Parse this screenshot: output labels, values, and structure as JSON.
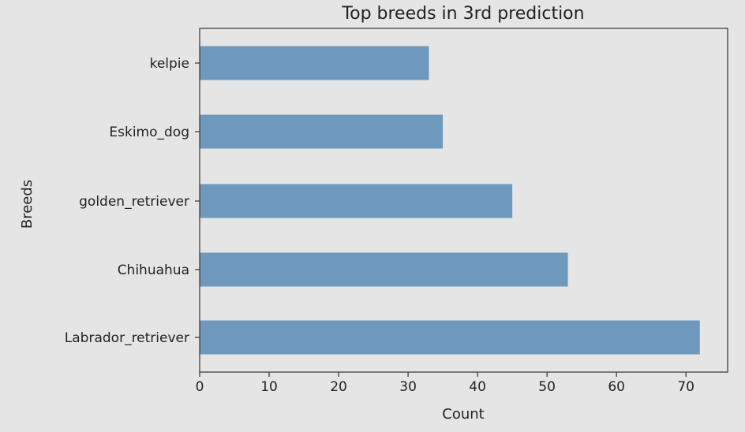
{
  "chart_data": {
    "type": "bar",
    "orientation": "horizontal",
    "title": "Top breeds in 3rd prediction",
    "xlabel": "Count",
    "ylabel": "Breeds",
    "categories": [
      "Labrador_retriever",
      "Chihuahua",
      "golden_retriever",
      "Eskimo_dog",
      "kelpie"
    ],
    "values": [
      72,
      53,
      45,
      35,
      33
    ],
    "xlim": [
      0,
      76
    ],
    "xticks": [
      "0",
      "10",
      "20",
      "30",
      "40",
      "50",
      "60",
      "70"
    ],
    "grid": false,
    "legend": "none"
  },
  "colors": {
    "background": "#e5e5e5",
    "bar": "#6e99bd",
    "axis": "#333333",
    "text": "#222222"
  }
}
